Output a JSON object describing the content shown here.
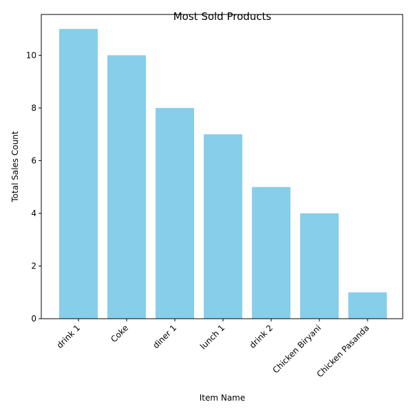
{
  "chart_data": {
    "type": "bar",
    "title": "Most Sold Products",
    "xlabel": "Item Name",
    "ylabel": "Total Sales Count",
    "categories": [
      "drink 1",
      "Coke",
      "diner 1",
      "lunch 1",
      "drink 2",
      "Chicken Biryani",
      "Chicken Pasanda"
    ],
    "values": [
      11,
      10,
      8,
      7,
      5,
      4,
      1
    ],
    "ylim": [
      0,
      11.55
    ],
    "yticks": [
      0,
      2,
      4,
      6,
      8,
      10
    ],
    "bar_color": "#87ceeb",
    "grid": false,
    "legend": "none"
  }
}
